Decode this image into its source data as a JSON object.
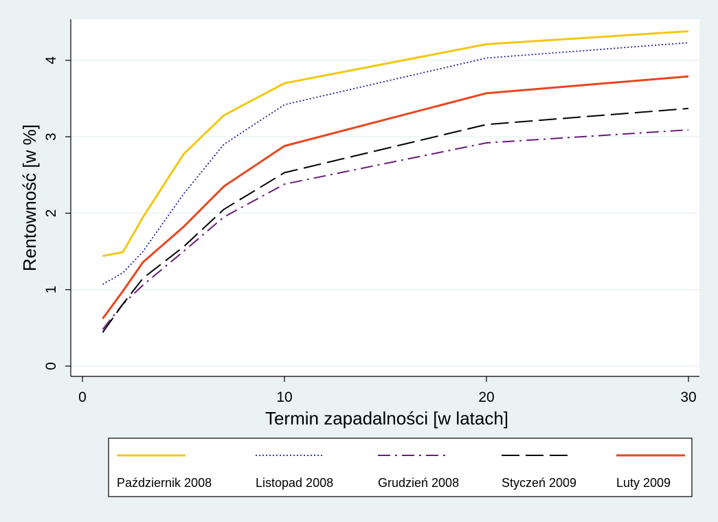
{
  "chart_data": {
    "type": "line",
    "xlabel": "Termin zapadalności [w latach]",
    "ylabel": "Rentowność [w %]",
    "xlim": [
      0,
      30
    ],
    "ylim": [
      0,
      4.4
    ],
    "xticks": [
      0,
      10,
      20,
      30
    ],
    "yticks": [
      0,
      1,
      2,
      3,
      4
    ],
    "grid": "horizontal",
    "legend_position": "bottom",
    "x": [
      1,
      2,
      3,
      5,
      7,
      10,
      20,
      30
    ],
    "series": [
      {
        "name": "Październik 2008",
        "color": "#f2c80f",
        "style": "solid",
        "width": 3,
        "values": [
          1.44,
          1.49,
          1.95,
          2.77,
          3.28,
          3.7,
          4.21,
          4.38
        ]
      },
      {
        "name": "Listopad 2008",
        "color": "#1a1a9c",
        "style": "dotted",
        "width": 1.8,
        "values": [
          1.07,
          1.22,
          1.5,
          2.25,
          2.9,
          3.42,
          4.03,
          4.23
        ]
      },
      {
        "name": "Grudzień 2008",
        "color": "#6a1b7a",
        "style": "dashdot",
        "width": 2,
        "values": [
          0.48,
          0.81,
          1.06,
          1.5,
          1.95,
          2.38,
          2.92,
          3.09
        ]
      },
      {
        "name": "Styczeń 2009",
        "color": "#000000",
        "style": "dashed",
        "width": 2,
        "values": [
          0.44,
          0.81,
          1.15,
          1.56,
          2.05,
          2.53,
          3.16,
          3.37
        ]
      },
      {
        "name": "Luty 2009",
        "color": "#e8461e",
        "style": "solid",
        "width": 3,
        "values": [
          0.62,
          0.98,
          1.36,
          1.82,
          2.35,
          2.88,
          3.57,
          3.79
        ]
      }
    ]
  }
}
